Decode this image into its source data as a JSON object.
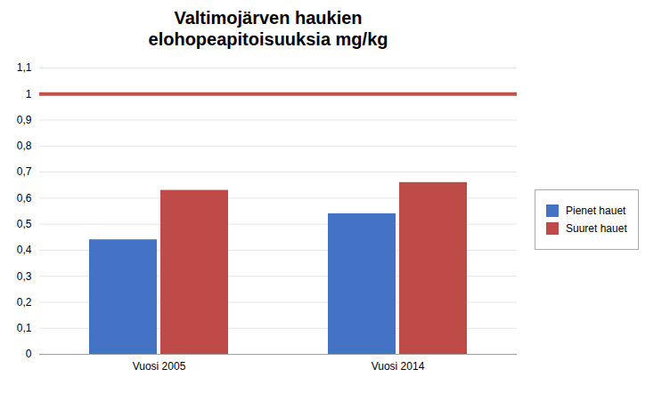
{
  "chart_data": {
    "type": "bar",
    "title": "Valtimojärven haukien\nelohopeapitoisuuksia mg/kg",
    "categories": [
      "Vuosi 2005",
      "Vuosi 2014"
    ],
    "series": [
      {
        "name": "Pienet hauet",
        "color": "#4472C4",
        "values": [
          0.44,
          0.54
        ]
      },
      {
        "name": "Suuret hauet",
        "color": "#BE4B48",
        "values": [
          0.63,
          0.66
        ]
      }
    ],
    "ylim": [
      0,
      1.1
    ],
    "yticks": [
      0,
      {
        "value": 0.1,
        "label": "0,1"
      },
      {
        "value": 0.2,
        "label": "0,2"
      },
      {
        "value": 0.3,
        "label": "0,3"
      },
      {
        "value": 0.4,
        "label": "0,4"
      },
      {
        "value": 0.5,
        "label": "0,5"
      },
      {
        "value": 0.6,
        "label": "0,6"
      },
      {
        "value": 0.7,
        "label": "0,7"
      },
      {
        "value": 0.8,
        "label": "0,8"
      },
      {
        "value": 0.9,
        "label": "0,9"
      },
      1,
      {
        "value": 1.1,
        "label": "1,1"
      }
    ],
    "grid": true,
    "legend": "right",
    "reference_line": {
      "y": 1.0,
      "color": "#C0504D"
    }
  }
}
